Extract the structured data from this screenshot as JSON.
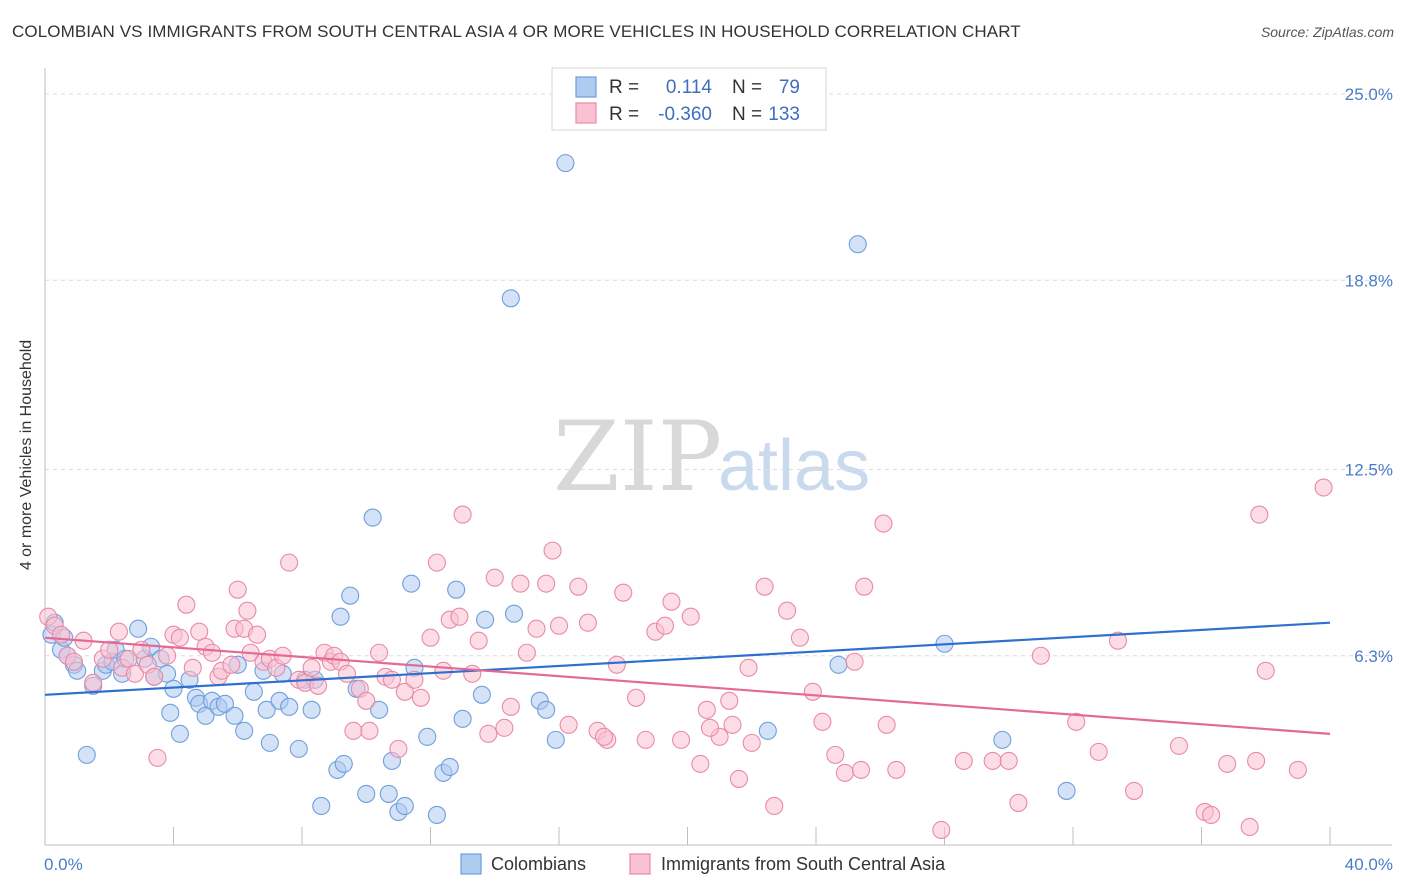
{
  "title": "COLOMBIAN VS IMMIGRANTS FROM SOUTH CENTRAL ASIA 4 OR MORE VEHICLES IN HOUSEHOLD CORRELATION CHART",
  "source": "Source: ZipAtlas.com",
  "watermark": {
    "zip": "ZIP",
    "atlas": "atlas"
  },
  "legend_top": {
    "r_label": "R =",
    "n_label": "N =",
    "rows": [
      {
        "r": "0.114",
        "n": "79",
        "color": "#aecbf0",
        "stroke": "#6f9fdc"
      },
      {
        "r": "-0.360",
        "n": "133",
        "color": "#f9c1d1",
        "stroke": "#e98aa7"
      }
    ]
  },
  "chart_data": {
    "type": "scatter",
    "xlabel": "",
    "ylabel": "4 or more Vehicles in Household",
    "xlim": [
      0,
      40
    ],
    "ylim": [
      0,
      25.6
    ],
    "x_tick_labels": [
      {
        "value": 0,
        "label": "0.0%"
      },
      {
        "value": 40,
        "label": "40.0%"
      }
    ],
    "y_tick_labels": [
      {
        "value": 6.3,
        "label": "6.3%"
      },
      {
        "value": 12.5,
        "label": "12.5%"
      },
      {
        "value": 18.8,
        "label": "18.8%"
      },
      {
        "value": 25.0,
        "label": "25.0%"
      }
    ],
    "grid": true,
    "series": [
      {
        "name": "Colombians",
        "color": "#6f9fdc",
        "fill": "#aecbf0",
        "trend_color": "#2f6fcf",
        "trend": {
          "x": [
            0,
            40
          ],
          "y": [
            5.0,
            7.4
          ]
        },
        "points": [
          [
            0.2,
            7.0
          ],
          [
            0.3,
            7.4
          ],
          [
            0.5,
            6.5
          ],
          [
            0.6,
            6.9
          ],
          [
            0.7,
            6.3
          ],
          [
            0.9,
            6.0
          ],
          [
            1.0,
            5.8
          ],
          [
            1.3,
            3.0
          ],
          [
            1.5,
            5.3
          ],
          [
            1.8,
            5.8
          ],
          [
            1.9,
            6.0
          ],
          [
            2.1,
            6.1
          ],
          [
            2.2,
            6.5
          ],
          [
            2.4,
            5.7
          ],
          [
            2.5,
            6.2
          ],
          [
            2.9,
            7.2
          ],
          [
            3.1,
            6.2
          ],
          [
            3.3,
            6.6
          ],
          [
            3.4,
            5.6
          ],
          [
            3.6,
            6.2
          ],
          [
            3.8,
            5.7
          ],
          [
            3.9,
            4.4
          ],
          [
            4.0,
            5.2
          ],
          [
            4.2,
            3.7
          ],
          [
            4.5,
            5.5
          ],
          [
            4.7,
            4.9
          ],
          [
            4.8,
            4.7
          ],
          [
            5.0,
            4.3
          ],
          [
            5.2,
            4.8
          ],
          [
            5.4,
            4.6
          ],
          [
            5.6,
            4.7
          ],
          [
            5.9,
            4.3
          ],
          [
            6.0,
            6.0
          ],
          [
            6.2,
            3.8
          ],
          [
            6.5,
            5.1
          ],
          [
            6.8,
            5.8
          ],
          [
            6.9,
            4.5
          ],
          [
            7.0,
            3.4
          ],
          [
            7.3,
            4.8
          ],
          [
            7.4,
            5.7
          ],
          [
            7.6,
            4.6
          ],
          [
            7.9,
            3.2
          ],
          [
            8.1,
            5.5
          ],
          [
            8.3,
            4.5
          ],
          [
            8.4,
            5.5
          ],
          [
            8.6,
            1.3
          ],
          [
            9.1,
            2.5
          ],
          [
            9.2,
            7.6
          ],
          [
            9.3,
            2.7
          ],
          [
            9.5,
            8.3
          ],
          [
            9.7,
            5.2
          ],
          [
            10.0,
            1.7
          ],
          [
            10.2,
            10.9
          ],
          [
            10.4,
            4.5
          ],
          [
            10.7,
            1.7
          ],
          [
            10.8,
            2.8
          ],
          [
            11.0,
            1.1
          ],
          [
            11.2,
            1.3
          ],
          [
            11.4,
            8.7
          ],
          [
            11.5,
            5.9
          ],
          [
            11.9,
            3.6
          ],
          [
            12.2,
            1.0
          ],
          [
            12.4,
            2.4
          ],
          [
            12.6,
            2.6
          ],
          [
            12.8,
            8.5
          ],
          [
            13.0,
            4.2
          ],
          [
            13.6,
            5.0
          ],
          [
            13.7,
            7.5
          ],
          [
            14.5,
            18.2
          ],
          [
            14.6,
            7.7
          ],
          [
            15.4,
            4.8
          ],
          [
            15.6,
            4.5
          ],
          [
            15.9,
            3.5
          ],
          [
            16.2,
            22.7
          ],
          [
            22.5,
            3.8
          ],
          [
            24.7,
            6.0
          ],
          [
            25.3,
            20.0
          ],
          [
            28.0,
            6.7
          ],
          [
            29.8,
            3.5
          ],
          [
            31.8,
            1.8
          ]
        ]
      },
      {
        "name": "Immigrants from South Central Asia",
        "color": "#e98aa7",
        "fill": "#f9c1d1",
        "trend_color": "#e46a93",
        "trend": {
          "x": [
            0,
            40
          ],
          "y": [
            6.9,
            3.7
          ]
        },
        "points": [
          [
            0.1,
            7.6
          ],
          [
            0.3,
            7.3
          ],
          [
            0.5,
            7.0
          ],
          [
            0.7,
            6.3
          ],
          [
            0.9,
            6.1
          ],
          [
            1.2,
            6.8
          ],
          [
            1.5,
            5.4
          ],
          [
            1.8,
            6.2
          ],
          [
            2.0,
            6.5
          ],
          [
            2.3,
            7.1
          ],
          [
            2.4,
            5.9
          ],
          [
            2.6,
            6.2
          ],
          [
            2.8,
            5.7
          ],
          [
            3.0,
            6.5
          ],
          [
            3.2,
            6.0
          ],
          [
            3.4,
            5.6
          ],
          [
            3.5,
            2.9
          ],
          [
            3.8,
            6.3
          ],
          [
            4.0,
            7.0
          ],
          [
            4.2,
            6.9
          ],
          [
            4.4,
            8.0
          ],
          [
            4.6,
            5.9
          ],
          [
            4.8,
            7.1
          ],
          [
            5.0,
            6.6
          ],
          [
            5.2,
            6.4
          ],
          [
            5.4,
            5.6
          ],
          [
            5.5,
            5.8
          ],
          [
            5.8,
            6.0
          ],
          [
            5.9,
            7.2
          ],
          [
            6.0,
            8.5
          ],
          [
            6.2,
            7.2
          ],
          [
            6.3,
            7.8
          ],
          [
            6.4,
            6.4
          ],
          [
            6.6,
            7.0
          ],
          [
            6.8,
            6.1
          ],
          [
            7.0,
            6.2
          ],
          [
            7.2,
            5.9
          ],
          [
            7.4,
            6.3
          ],
          [
            7.6,
            9.4
          ],
          [
            7.9,
            5.5
          ],
          [
            8.1,
            5.4
          ],
          [
            8.3,
            5.9
          ],
          [
            8.5,
            5.3
          ],
          [
            8.7,
            6.4
          ],
          [
            8.9,
            6.1
          ],
          [
            9.0,
            6.3
          ],
          [
            9.2,
            6.1
          ],
          [
            9.4,
            5.7
          ],
          [
            9.6,
            3.8
          ],
          [
            9.8,
            5.2
          ],
          [
            10.0,
            4.8
          ],
          [
            10.1,
            3.8
          ],
          [
            10.4,
            6.4
          ],
          [
            10.6,
            5.6
          ],
          [
            10.8,
            5.5
          ],
          [
            11.0,
            3.2
          ],
          [
            11.2,
            5.1
          ],
          [
            11.5,
            5.5
          ],
          [
            11.7,
            4.9
          ],
          [
            12.0,
            6.9
          ],
          [
            12.2,
            9.4
          ],
          [
            12.4,
            5.8
          ],
          [
            12.6,
            7.5
          ],
          [
            12.9,
            7.6
          ],
          [
            13.0,
            11.0
          ],
          [
            13.3,
            5.7
          ],
          [
            13.5,
            6.8
          ],
          [
            13.8,
            3.7
          ],
          [
            14.0,
            8.9
          ],
          [
            14.3,
            3.9
          ],
          [
            14.5,
            4.6
          ],
          [
            14.8,
            8.7
          ],
          [
            15.0,
            6.4
          ],
          [
            15.3,
            7.2
          ],
          [
            15.6,
            8.7
          ],
          [
            15.8,
            9.8
          ],
          [
            16.0,
            7.3
          ],
          [
            16.3,
            4.0
          ],
          [
            16.6,
            8.6
          ],
          [
            16.9,
            7.4
          ],
          [
            17.2,
            3.8
          ],
          [
            17.5,
            3.5
          ],
          [
            17.8,
            6.0
          ],
          [
            18.0,
            8.4
          ],
          [
            18.4,
            4.9
          ],
          [
            18.7,
            3.5
          ],
          [
            19.0,
            7.1
          ],
          [
            19.3,
            7.3
          ],
          [
            19.5,
            8.1
          ],
          [
            19.8,
            3.5
          ],
          [
            20.1,
            7.6
          ],
          [
            20.4,
            2.7
          ],
          [
            20.6,
            4.5
          ],
          [
            21.0,
            3.6
          ],
          [
            21.3,
            4.8
          ],
          [
            21.4,
            4.0
          ],
          [
            21.6,
            2.2
          ],
          [
            21.9,
            5.9
          ],
          [
            22.0,
            3.4
          ],
          [
            22.4,
            8.6
          ],
          [
            22.7,
            1.3
          ],
          [
            23.1,
            7.8
          ],
          [
            23.5,
            6.9
          ],
          [
            23.9,
            5.1
          ],
          [
            24.2,
            4.1
          ],
          [
            24.6,
            3.0
          ],
          [
            24.9,
            2.4
          ],
          [
            25.5,
            8.6
          ],
          [
            26.1,
            10.7
          ],
          [
            25.4,
            2.5
          ],
          [
            25.2,
            6.1
          ],
          [
            26.2,
            4.0
          ],
          [
            26.5,
            2.5
          ],
          [
            27.9,
            0.5
          ],
          [
            28.6,
            2.8
          ],
          [
            29.5,
            2.8
          ],
          [
            30.0,
            2.8
          ],
          [
            30.3,
            1.4
          ],
          [
            31.0,
            6.3
          ],
          [
            32.1,
            4.1
          ],
          [
            32.8,
            3.1
          ],
          [
            33.4,
            6.8
          ],
          [
            33.9,
            1.8
          ],
          [
            35.3,
            3.3
          ],
          [
            36.1,
            1.1
          ],
          [
            36.3,
            1.0
          ],
          [
            36.8,
            2.7
          ],
          [
            37.5,
            0.6
          ],
          [
            37.7,
            2.8
          ],
          [
            37.8,
            11.0
          ],
          [
            38.0,
            5.8
          ],
          [
            39.0,
            2.5
          ],
          [
            39.8,
            11.9
          ],
          [
            17.4,
            3.6
          ],
          [
            20.7,
            3.9
          ]
        ]
      }
    ]
  }
}
